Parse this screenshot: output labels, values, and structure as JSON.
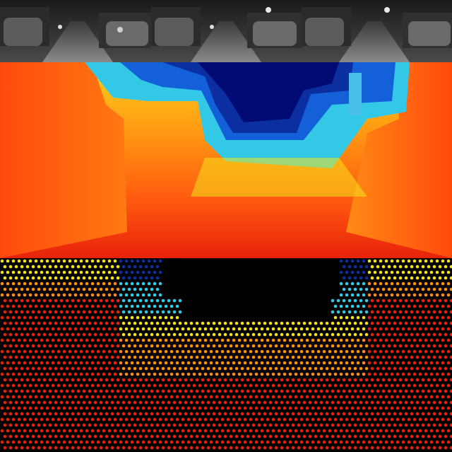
{
  "figure": {
    "panels": [
      {
        "id": "grayscale-street-strip",
        "kind": "grayscale-camera-image",
        "tiles": 3
      },
      {
        "id": "dense-depth-map",
        "kind": "dense-depth-prediction",
        "colormap": "jet"
      },
      {
        "id": "sparse-lidar-depth",
        "kind": "sparse-lidar-points",
        "colormap": "jet",
        "background": "#000000"
      }
    ],
    "colormap_colors": {
      "near": "#e8200a",
      "mid_near": "#ff8c10",
      "mid": "#f5e21a",
      "mid_far": "#33c9e6",
      "far": "#0b2fa0",
      "sky": "#000a73"
    }
  }
}
